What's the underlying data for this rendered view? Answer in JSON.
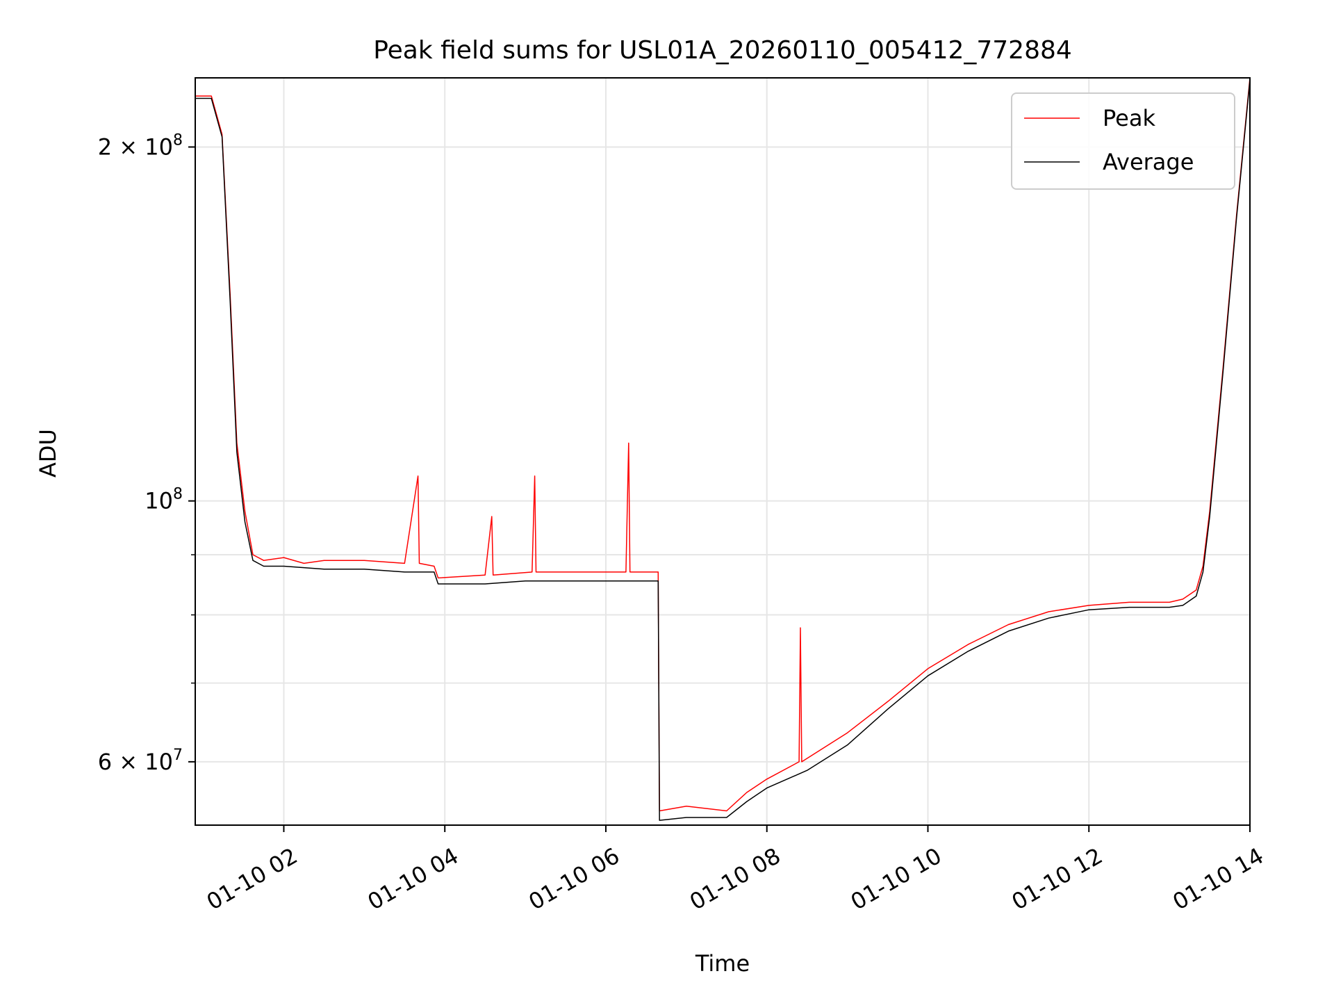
{
  "chart_data": {
    "type": "line",
    "title": "Peak field sums for USL01A_20260110_005412_772884",
    "xlabel": "Time",
    "ylabel": "ADU",
    "y_scale": "log",
    "ylim": [
      53000000,
      229000000
    ],
    "xlim": [
      "2026-01-10 00:54",
      "2026-01-10 14:00"
    ],
    "grid": true,
    "legend_position": "upper right",
    "x_ticks": [
      {
        "value": "2026-01-10 02:00",
        "label": "01-10 02"
      },
      {
        "value": "2026-01-10 04:00",
        "label": "01-10 04"
      },
      {
        "value": "2026-01-10 06:00",
        "label": "01-10 06"
      },
      {
        "value": "2026-01-10 08:00",
        "label": "01-10 08"
      },
      {
        "value": "2026-01-10 10:00",
        "label": "01-10 10"
      },
      {
        "value": "2026-01-10 12:00",
        "label": "01-10 12"
      },
      {
        "value": "2026-01-10 14:00",
        "label": "01-10 14"
      }
    ],
    "y_ticks": [
      {
        "value": 200000000,
        "mantissa": "2",
        "times": "×",
        "base": "10",
        "exp": "8"
      },
      {
        "value": 100000000,
        "mantissa": "",
        "times": "",
        "base": "10",
        "exp": "8"
      },
      {
        "value": 60000000,
        "mantissa": "6",
        "times": "×",
        "base": "10",
        "exp": "7"
      }
    ],
    "y_minor_ticks": [
      70000000,
      80000000,
      90000000
    ],
    "series": [
      {
        "name": "Peak",
        "color": "#ff0000",
        "points": [
          [
            "2026-01-10 00:54",
            221000000
          ],
          [
            "2026-01-10 01:06",
            221000000
          ],
          [
            "2026-01-10 01:14",
            205000000
          ],
          [
            "2026-01-10 01:20",
            150000000
          ],
          [
            "2026-01-10 01:25",
            112000000
          ],
          [
            "2026-01-10 01:31",
            98000000
          ],
          [
            "2026-01-10 01:37",
            90000000
          ],
          [
            "2026-01-10 01:45",
            89000000
          ],
          [
            "2026-01-10 02:00",
            89500000
          ],
          [
            "2026-01-10 02:15",
            88500000
          ],
          [
            "2026-01-10 02:30",
            89000000
          ],
          [
            "2026-01-10 03:00",
            89000000
          ],
          [
            "2026-01-10 03:30",
            88500000
          ],
          [
            "2026-01-10 03:40",
            105000000
          ],
          [
            "2026-01-10 03:41",
            88500000
          ],
          [
            "2026-01-10 03:52",
            88000000
          ],
          [
            "2026-01-10 03:55",
            86000000
          ],
          [
            "2026-01-10 04:30",
            86500000
          ],
          [
            "2026-01-10 04:35",
            97000000
          ],
          [
            "2026-01-10 04:36",
            86500000
          ],
          [
            "2026-01-10 05:05",
            87000000
          ],
          [
            "2026-01-10 05:07",
            105000000
          ],
          [
            "2026-01-10 05:08",
            87000000
          ],
          [
            "2026-01-10 06:15",
            87000000
          ],
          [
            "2026-01-10 06:17",
            112000000
          ],
          [
            "2026-01-10 06:18",
            87000000
          ],
          [
            "2026-01-10 06:39",
            87000000
          ],
          [
            "2026-01-10 06:40",
            54500000
          ],
          [
            "2026-01-10 07:00",
            55000000
          ],
          [
            "2026-01-10 07:30",
            54500000
          ],
          [
            "2026-01-10 07:45",
            56500000
          ],
          [
            "2026-01-10 08:00",
            58000000
          ],
          [
            "2026-01-10 08:24",
            60000000
          ],
          [
            "2026-01-10 08:25",
            78000000
          ],
          [
            "2026-01-10 08:26",
            60000000
          ],
          [
            "2026-01-10 09:00",
            63500000
          ],
          [
            "2026-01-10 09:30",
            67500000
          ],
          [
            "2026-01-10 10:00",
            72000000
          ],
          [
            "2026-01-10 10:30",
            75500000
          ],
          [
            "2026-01-10 11:00",
            78500000
          ],
          [
            "2026-01-10 11:30",
            80500000
          ],
          [
            "2026-01-10 12:00",
            81500000
          ],
          [
            "2026-01-10 12:30",
            82000000
          ],
          [
            "2026-01-10 13:00",
            82000000
          ],
          [
            "2026-01-10 13:10",
            82500000
          ],
          [
            "2026-01-10 13:20",
            84000000
          ],
          [
            "2026-01-10 13:25",
            88000000
          ],
          [
            "2026-01-10 13:30",
            98000000
          ],
          [
            "2026-01-10 13:40",
            130000000
          ],
          [
            "2026-01-10 13:50",
            175000000
          ],
          [
            "2026-01-10 14:00",
            229000000
          ]
        ]
      },
      {
        "name": "Average",
        "color": "#000000",
        "points": [
          [
            "2026-01-10 00:54",
            220000000
          ],
          [
            "2026-01-10 01:06",
            220000000
          ],
          [
            "2026-01-10 01:14",
            204000000
          ],
          [
            "2026-01-10 01:20",
            148000000
          ],
          [
            "2026-01-10 01:25",
            110000000
          ],
          [
            "2026-01-10 01:31",
            96000000
          ],
          [
            "2026-01-10 01:37",
            89000000
          ],
          [
            "2026-01-10 01:45",
            88000000
          ],
          [
            "2026-01-10 02:00",
            88000000
          ],
          [
            "2026-01-10 02:30",
            87500000
          ],
          [
            "2026-01-10 03:00",
            87500000
          ],
          [
            "2026-01-10 03:30",
            87000000
          ],
          [
            "2026-01-10 03:52",
            87000000
          ],
          [
            "2026-01-10 03:55",
            85000000
          ],
          [
            "2026-01-10 04:30",
            85000000
          ],
          [
            "2026-01-10 05:00",
            85500000
          ],
          [
            "2026-01-10 06:00",
            85500000
          ],
          [
            "2026-01-10 06:39",
            85500000
          ],
          [
            "2026-01-10 06:40",
            53500000
          ],
          [
            "2026-01-10 07:00",
            53800000
          ],
          [
            "2026-01-10 07:30",
            53800000
          ],
          [
            "2026-01-10 07:45",
            55500000
          ],
          [
            "2026-01-10 08:00",
            57000000
          ],
          [
            "2026-01-10 08:30",
            59000000
          ],
          [
            "2026-01-10 09:00",
            62000000
          ],
          [
            "2026-01-10 09:30",
            66500000
          ],
          [
            "2026-01-10 10:00",
            71000000
          ],
          [
            "2026-01-10 10:30",
            74500000
          ],
          [
            "2026-01-10 11:00",
            77500000
          ],
          [
            "2026-01-10 11:30",
            79500000
          ],
          [
            "2026-01-10 12:00",
            80800000
          ],
          [
            "2026-01-10 12:30",
            81200000
          ],
          [
            "2026-01-10 13:00",
            81200000
          ],
          [
            "2026-01-10 13:10",
            81500000
          ],
          [
            "2026-01-10 13:20",
            83000000
          ],
          [
            "2026-01-10 13:25",
            87000000
          ],
          [
            "2026-01-10 13:30",
            97000000
          ],
          [
            "2026-01-10 13:40",
            129000000
          ],
          [
            "2026-01-10 13:50",
            174000000
          ],
          [
            "2026-01-10 14:00",
            228000000
          ]
        ]
      }
    ]
  }
}
